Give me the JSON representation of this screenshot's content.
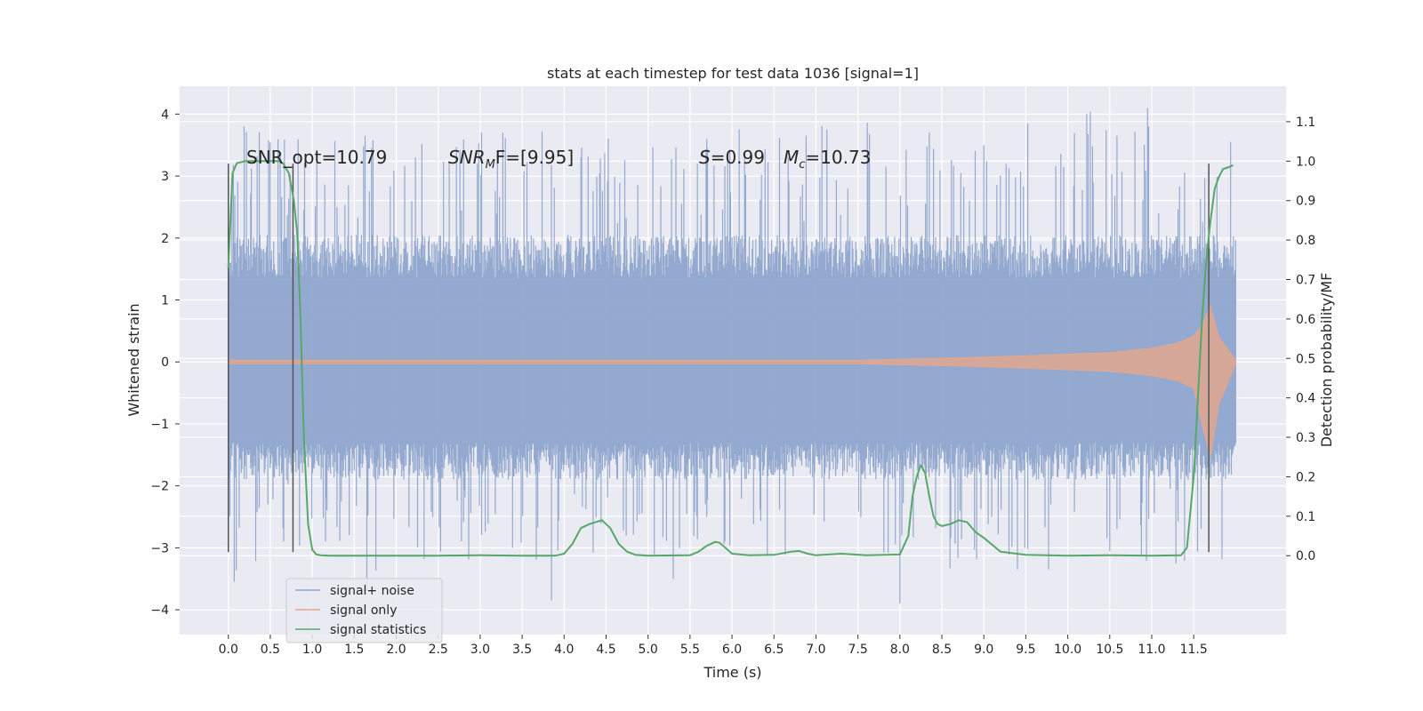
{
  "chart_data": {
    "type": "line",
    "title": "stats at each timestep for test data 1036 [signal=1]",
    "xlabel": "Time (s)",
    "ylabel_left": "Whitened strain",
    "ylabel_right": "Detection probability/MF",
    "xlim": [
      -0.58,
      12.6
    ],
    "ylim_left": [
      -4.4,
      4.45
    ],
    "ylim_right": [
      -0.2,
      1.19
    ],
    "x_ticks": [
      "0.0",
      "0.5",
      "1.0",
      "1.5",
      "2.0",
      "2.5",
      "3.0",
      "3.5",
      "4.0",
      "4.5",
      "5.0",
      "5.5",
      "6.0",
      "6.5",
      "7.0",
      "7.5",
      "8.0",
      "8.5",
      "9.0",
      "9.5",
      "10.0",
      "10.5",
      "11.0",
      "11.5"
    ],
    "y_ticks_left": [
      "4",
      "3",
      "2",
      "1",
      "0",
      "−1",
      "−2",
      "−3",
      "−4"
    ],
    "y_ticks_right": [
      "1.1",
      "1.0",
      "0.9",
      "0.8",
      "0.7",
      "0.6",
      "0.5",
      "0.4",
      "0.3",
      "0.2",
      "0.1",
      "0.0"
    ],
    "annotations": {
      "snr_opt": "SNR_opt=10.79",
      "snr_mf_base": "SNR",
      "snr_mf_sub": "M",
      "snr_mf_rest": "F=[9.95]",
      "s_var": "S",
      "s_val": "=0.99",
      "mc_var": "M",
      "mc_sub": "c",
      "mc_val": "=10.73"
    },
    "grid": true,
    "legend_position": "lower-left",
    "series": [
      {
        "name": "signal+ noise",
        "color": "#8fa5cc",
        "envelope": {
          "typical_upper": 1.35,
          "typical_lower": -1.3,
          "max_peak": 4.1,
          "min_trough": -3.85
        }
      },
      {
        "name": "signal only",
        "color": "#e5a68b",
        "envelope_x": [
          0,
          7.5,
          8.5,
          9.5,
          10.5,
          11.0,
          11.3,
          11.5,
          11.6,
          11.7,
          11.8
        ],
        "envelope_amp": [
          0.03,
          0.03,
          0.06,
          0.1,
          0.15,
          0.22,
          0.3,
          0.42,
          0.6,
          0.9,
          0.4
        ]
      },
      {
        "name": "signal statistics",
        "color": "#55a868",
        "x": [
          0.0,
          0.05,
          0.1,
          0.2,
          0.3,
          0.4,
          0.5,
          0.6,
          0.65,
          0.72,
          0.78,
          0.82,
          0.86,
          0.9,
          0.95,
          1.0,
          1.05,
          1.1,
          1.2,
          1.5,
          2.0,
          2.5,
          3.0,
          3.5,
          3.9,
          4.0,
          4.1,
          4.2,
          4.3,
          4.45,
          4.55,
          4.65,
          4.75,
          4.85,
          5.0,
          5.5,
          5.6,
          5.7,
          5.8,
          5.85,
          5.92,
          6.0,
          6.2,
          6.5,
          6.7,
          6.8,
          6.9,
          7.0,
          7.3,
          7.6,
          8.0,
          8.1,
          8.15,
          8.2,
          8.25,
          8.3,
          8.35,
          8.4,
          8.45,
          8.5,
          8.6,
          8.7,
          8.8,
          8.9,
          9.0,
          9.2,
          9.5,
          10.0,
          10.5,
          11.0,
          11.35,
          11.42,
          11.5,
          11.55,
          11.6,
          11.65,
          11.7,
          11.75,
          11.8,
          11.85,
          11.92,
          11.97
        ],
        "y": [
          0.73,
          0.97,
          0.995,
          1.0,
          1.0,
          1.0,
          1.0,
          1.0,
          0.995,
          0.97,
          0.9,
          0.82,
          0.6,
          0.3,
          0.08,
          0.015,
          0.003,
          0.001,
          0.0,
          0.0,
          0.0,
          0.0,
          0.001,
          0.0,
          0.0,
          0.005,
          0.03,
          0.07,
          0.08,
          0.09,
          0.07,
          0.03,
          0.01,
          0.002,
          0.0,
          0.001,
          0.01,
          0.025,
          0.035,
          0.033,
          0.02,
          0.005,
          0.001,
          0.002,
          0.01,
          0.012,
          0.005,
          0.001,
          0.005,
          0.001,
          0.003,
          0.05,
          0.15,
          0.2,
          0.23,
          0.21,
          0.15,
          0.1,
          0.08,
          0.075,
          0.08,
          0.09,
          0.085,
          0.06,
          0.045,
          0.01,
          0.002,
          0.0,
          0.001,
          0.0,
          0.001,
          0.02,
          0.2,
          0.4,
          0.6,
          0.75,
          0.85,
          0.93,
          0.96,
          0.98,
          0.985,
          0.99
        ]
      }
    ],
    "vertical_markers_x": [
      0.0,
      0.77,
      11.68
    ]
  }
}
